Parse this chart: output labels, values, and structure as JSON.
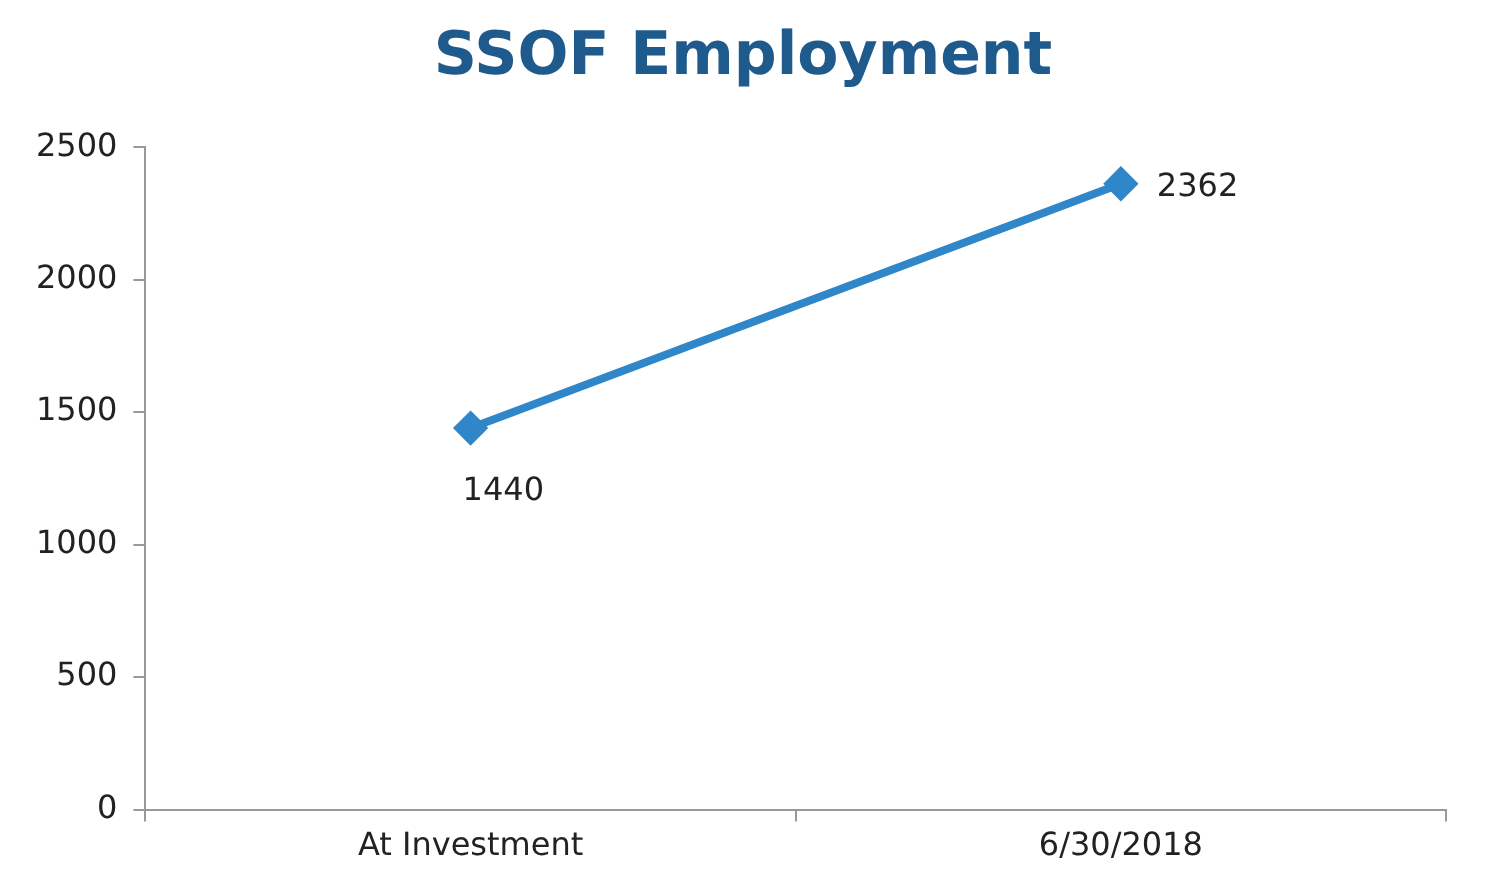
{
  "chart_data": {
    "type": "line",
    "title": "SSOF Employment",
    "categories": [
      "At Investment",
      "6/30/2018"
    ],
    "series": [
      {
        "color": "#2f86c8",
        "values": [
          1440,
          2362
        ]
      }
    ],
    "ylim": [
      0,
      2500
    ],
    "yticks": [
      0,
      500,
      1000,
      1500,
      2000,
      2500
    ],
    "grid": false,
    "legend": false,
    "marker": "diamond",
    "line_style": "solid",
    "data_labels": true
  }
}
